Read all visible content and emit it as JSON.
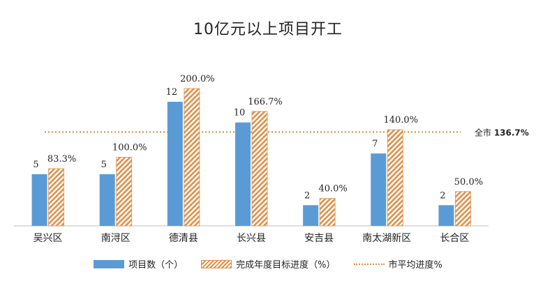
{
  "chart_data": {
    "type": "bar",
    "title": "10亿元以上项目开工",
    "categories": [
      "吴兴区",
      "南浔区",
      "德清县",
      "长兴县",
      "安吉县",
      "南太湖新区",
      "长合区"
    ],
    "series": [
      {
        "name": "项目数（个）",
        "values": [
          5,
          5,
          12,
          10,
          2,
          7,
          2
        ],
        "labels": [
          "5",
          "5",
          "12",
          "10",
          "2",
          "7",
          "2"
        ],
        "color": "#5b9bd5"
      },
      {
        "name": "完成年度目标进度（%）",
        "values": [
          83.3,
          100.0,
          200.0,
          166.7,
          40.0,
          140.0,
          50.0
        ],
        "labels": [
          "83.3%",
          "100.0%",
          "200.0%",
          "166.7%",
          "40.0%",
          "140.0%",
          "50.0%"
        ],
        "color": "#e0904a"
      }
    ],
    "reference_line": {
      "name": "市平均进度%",
      "value": 136.7,
      "label_prefix": "全市",
      "label_value": "136.7%",
      "color": "#e0904a"
    },
    "legend_position": "bottom",
    "grid": false
  }
}
